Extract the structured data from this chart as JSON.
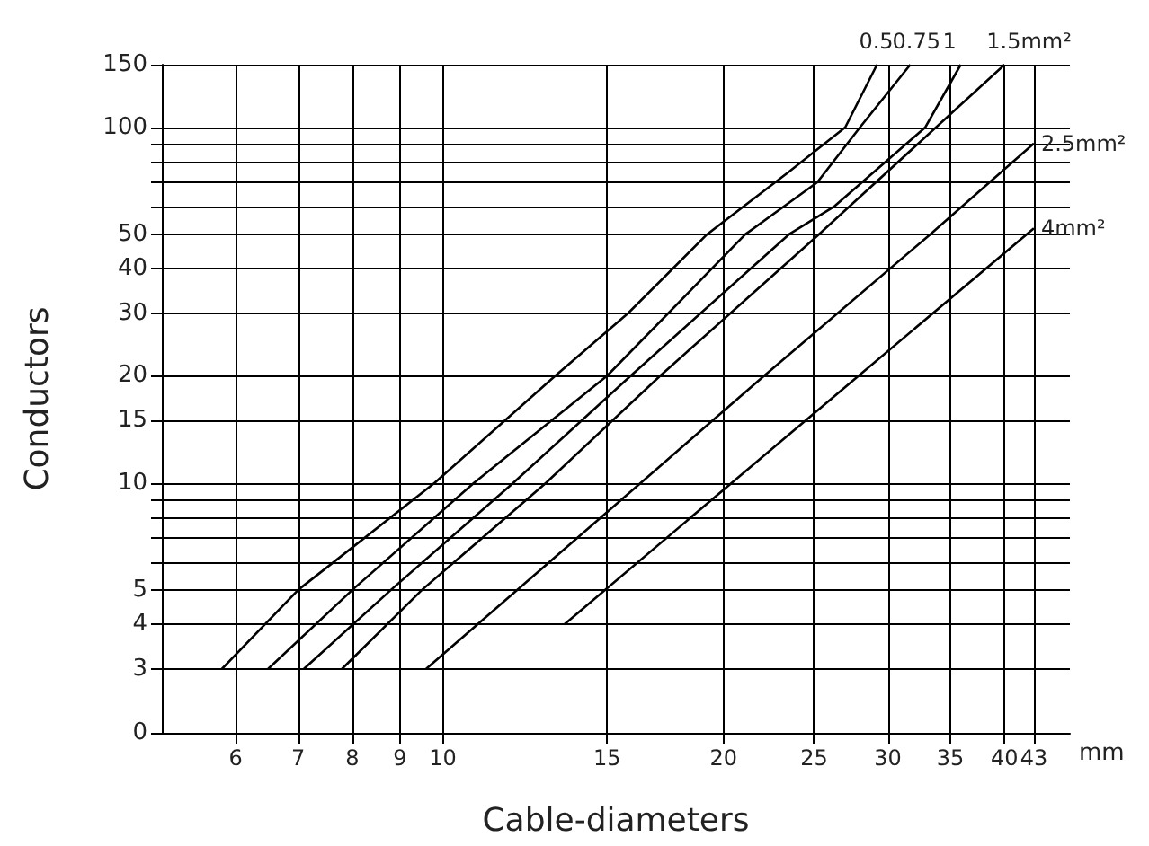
{
  "chart_data": {
    "type": "line",
    "xlabel": "Cable-diameters",
    "ylabel": "Conductors",
    "annotations": [
      "mm"
    ],
    "log": "xy",
    "grid": true,
    "legend": false,
    "marker": "none",
    "xlim": [
      5,
      47
    ],
    "ylim": [
      0,
      150
    ],
    "xticks": [
      6,
      7,
      8,
      9,
      10,
      15,
      20,
      25,
      30,
      35,
      40,
      43
    ],
    "yticks": [
      0,
      3,
      4,
      5,
      {
        "value": 6,
        "label": null
      },
      {
        "value": 7,
        "label": null
      },
      {
        "value": 8,
        "label": null
      },
      {
        "value": 9,
        "label": null
      },
      10,
      15,
      20,
      30,
      40,
      50,
      {
        "value": 60,
        "label": null
      },
      {
        "value": 70,
        "label": null
      },
      {
        "value": 80,
        "label": null
      },
      {
        "value": 90,
        "label": null
      },
      100,
      150
    ],
    "series": [
      {
        "name": "0.5",
        "color": "#000000",
        "x": [
          5.8,
          7,
          9.8,
          13.2,
          15.8,
          19.2,
          23.5,
          27,
          29.2
        ],
        "values": [
          3,
          5,
          10,
          20,
          30,
          50,
          75,
          100,
          150
        ]
      },
      {
        "name": "0.75",
        "color": "#000000",
        "x": [
          6.5,
          8,
          10.8,
          15,
          21.1,
          25.2,
          28,
          31.7
        ],
        "values": [
          3,
          5,
          10,
          20,
          50,
          70,
          100,
          150
        ]
      },
      {
        "name": "1",
        "color": "#000000",
        "x": [
          7.1,
          8.8,
          11.9,
          15.9,
          23.5,
          26.3,
          32.9,
          35.9
        ],
        "values": [
          3,
          5,
          10,
          20,
          50,
          60,
          100,
          150
        ]
      },
      {
        "name": "1.5mm²",
        "color": "#000000",
        "x": [
          7.8,
          9.5,
          12.9,
          17.1,
          25.3,
          40
        ],
        "values": [
          3,
          5,
          10,
          20,
          50,
          150
        ]
      },
      {
        "name": "2.5mm²",
        "color": "#000000",
        "x": [
          9.6,
          16.3,
          22.1,
          33.3,
          43
        ],
        "values": [
          3,
          10,
          20,
          50,
          90
        ]
      },
      {
        "name": "4mm²",
        "color": "#000000",
        "x": [
          13.5,
          20.4,
          27.9,
          43
        ],
        "values": [
          4,
          10,
          20,
          52
        ]
      }
    ]
  }
}
